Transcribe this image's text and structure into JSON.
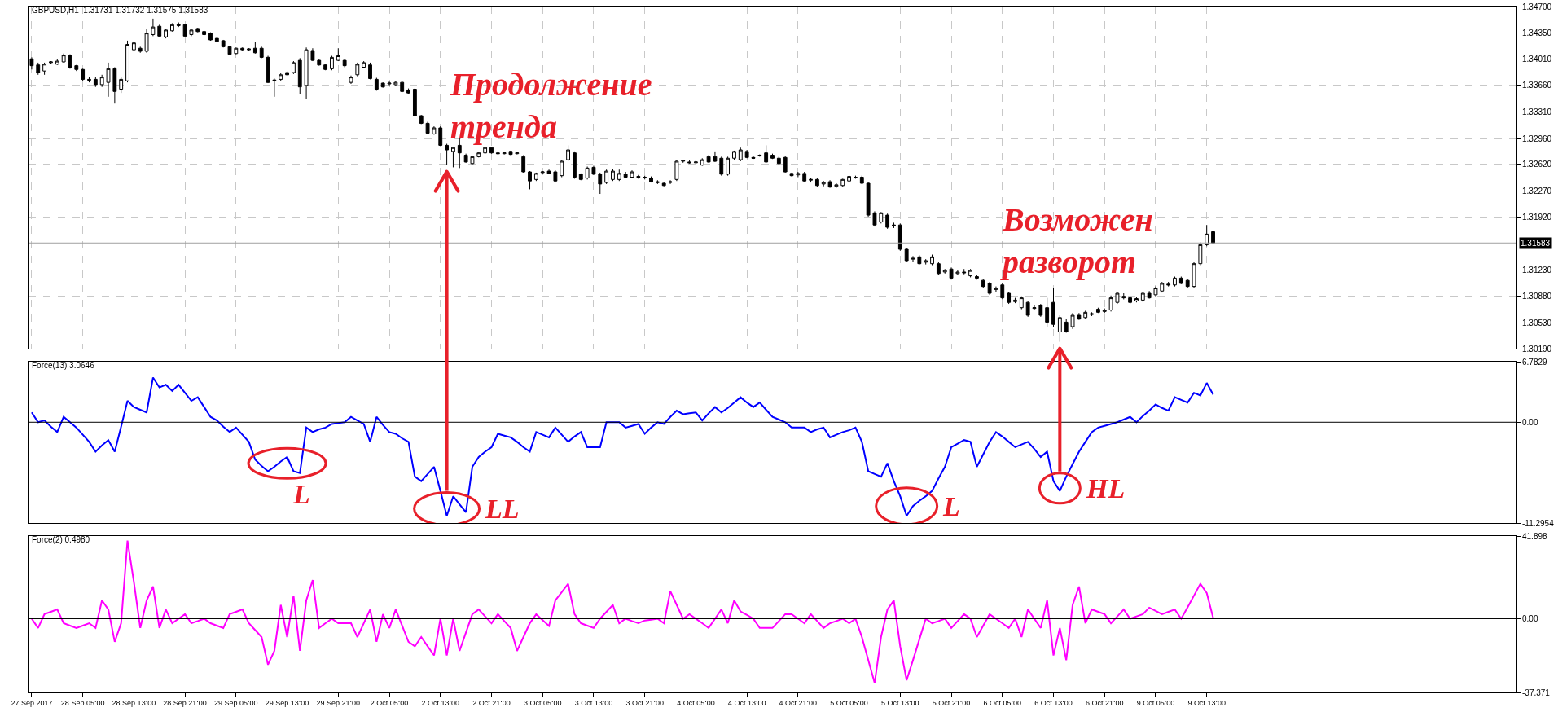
{
  "chart_data": [
    {
      "type": "candlestick",
      "title": "GBPUSD,H1  1.31731 1.31732 1.31575 1.31583",
      "grid": true,
      "tick_labels": "y",
      "categories": [
        null,
        null,
        null,
        null,
        null,
        null,
        null,
        null,
        null,
        null,
        null,
        null,
        null,
        null,
        null,
        null,
        null,
        null,
        null,
        null,
        null,
        null,
        null,
        null,
        null,
        null,
        null,
        null,
        null,
        null,
        null,
        null,
        null,
        null,
        null,
        null,
        null,
        null,
        null,
        null,
        null,
        null,
        null,
        null,
        null,
        null,
        null,
        null,
        null,
        null,
        null,
        null,
        null,
        null,
        null,
        null,
        null,
        null,
        null,
        null,
        null,
        null,
        null,
        null,
        null,
        null,
        null,
        null,
        null,
        null,
        null,
        null,
        null,
        null,
        null,
        null,
        null,
        null,
        null,
        null,
        null,
        null,
        null,
        null,
        null,
        null,
        null,
        null,
        null,
        null,
        null,
        null,
        null,
        null,
        null,
        null,
        null,
        null,
        null,
        null,
        null,
        null,
        null,
        null,
        null,
        null,
        null,
        null,
        null,
        null,
        null,
        null,
        null,
        null,
        null,
        null,
        null,
        null,
        null,
        null,
        null,
        null,
        null,
        null,
        null,
        null,
        null,
        null,
        null,
        null,
        null,
        null,
        null,
        null,
        null,
        null,
        null,
        null,
        null,
        null,
        null,
        null,
        null,
        null,
        null,
        null,
        null,
        null,
        null,
        null,
        null,
        null,
        null,
        null,
        null,
        null,
        null,
        null,
        null,
        null,
        null,
        null,
        null,
        null,
        null,
        null,
        null,
        null,
        null,
        null,
        null,
        null,
        null,
        null,
        null,
        null,
        null,
        null,
        null,
        null,
        null,
        null,
        null,
        null,
        null,
        null,
        null,
        null,
        null,
        null,
        null,
        null,
        null,
        null,
        null,
        null,
        null,
        null,
        null,
        null,
        null,
        null,
        null,
        null,
        null,
        null,
        null,
        null,
        null,
        null,
        null,
        null,
        null,
        null,
        null,
        null,
        null,
        null,
        null,
        null,
        null,
        null,
        null,
        null,
        null,
        null,
        null,
        null,
        null,
        null,
        null,
        null,
        null
      ],
      "ylim": [
        1.3019,
        1.347
      ],
      "yticks": [
        {
          "value": 1.347,
          "label": "1.34700"
        },
        {
          "value": 1.3435,
          "label": "1.34350"
        },
        {
          "value": 1.3401,
          "label": "1.34010"
        },
        {
          "value": 1.3366,
          "label": "1.33660"
        },
        {
          "value": 1.3331,
          "label": "1.33310"
        },
        {
          "value": 1.3296,
          "label": "1.32960"
        },
        {
          "value": 1.3262,
          "label": "1.32620"
        },
        {
          "value": 1.3227,
          "label": "1.32270"
        },
        {
          "value": 1.3192,
          "label": "1.31920"
        },
        {
          "value": 1.3123,
          "label": "1.31230"
        },
        {
          "value": 1.3088,
          "label": "1.30880"
        },
        {
          "value": 1.3053,
          "label": "1.30530"
        },
        {
          "value": 1.3019,
          "label": "1.30190"
        }
      ],
      "ref_lines": [
        {
          "axis": "y",
          "value": 1.31583,
          "label": "1.31583",
          "color": "#a0a0a0"
        }
      ],
      "annotations": [
        "Продолжение\nтренда",
        "Возможен\nразворот"
      ],
      "ohlc": [
        [
          1.3401,
          1.3403,
          1.3387,
          1.3392
        ],
        [
          1.3393,
          1.3396,
          1.338,
          1.3383
        ],
        [
          1.3385,
          1.3396,
          1.338,
          1.3394
        ],
        [
          1.3396,
          1.3398,
          1.3394,
          1.3397
        ],
        [
          1.3394,
          1.3401,
          1.3393,
          1.3398
        ],
        [
          1.3397,
          1.3408,
          1.3396,
          1.3406
        ],
        [
          1.3405,
          1.3407,
          1.3388,
          1.339
        ],
        [
          1.3392,
          1.3393,
          1.3385,
          1.3387
        ],
        [
          1.3387,
          1.3388,
          1.3372,
          1.3374
        ],
        [
          1.3374,
          1.3377,
          1.337,
          1.3373
        ],
        [
          1.3374,
          1.3377,
          1.3364,
          1.3367
        ],
        [
          1.3367,
          1.338,
          1.3364,
          1.3377
        ],
        [
          1.337,
          1.3396,
          1.3351,
          1.3388
        ],
        [
          1.3388,
          1.339,
          1.3342,
          1.3358
        ],
        [
          1.3361,
          1.3377,
          1.3356,
          1.3374
        ],
        [
          1.3372,
          1.3425,
          1.337,
          1.342
        ],
        [
          1.3413,
          1.3424,
          1.3411,
          1.3422
        ],
        [
          1.3415,
          1.3417,
          1.3409,
          1.3411
        ],
        [
          1.3411,
          1.3441,
          1.3409,
          1.3435
        ],
        [
          1.3433,
          1.3454,
          1.3431,
          1.3443
        ],
        [
          1.3444,
          1.3446,
          1.343,
          1.3431
        ],
        [
          1.343,
          1.3441,
          1.3428,
          1.3439
        ],
        [
          1.3438,
          1.3448,
          1.3437,
          1.3446
        ],
        [
          1.3446,
          1.3449,
          1.3443,
          1.3445
        ],
        [
          1.3446,
          1.3447,
          1.343,
          1.3431
        ],
        [
          1.3433,
          1.3441,
          1.3431,
          1.3439
        ],
        [
          1.3441,
          1.3442,
          1.3436,
          1.3437
        ],
        [
          1.3437,
          1.3438,
          1.3432,
          1.3433
        ],
        [
          1.3435,
          1.3436,
          1.3425,
          1.3426
        ],
        [
          1.3428,
          1.3429,
          1.3423,
          1.3424
        ],
        [
          1.3425,
          1.3426,
          1.3416,
          1.3417
        ],
        [
          1.3417,
          1.3418,
          1.3406,
          1.3407
        ],
        [
          1.3408,
          1.3416,
          1.3407,
          1.3415
        ],
        [
          1.3415,
          1.3416,
          1.3412,
          1.3413
        ],
        [
          1.3413,
          1.3415,
          1.3411,
          1.3414
        ],
        [
          1.3415,
          1.3423,
          1.3408,
          1.3409
        ],
        [
          1.3415,
          1.3417,
          1.3402,
          1.3403
        ],
        [
          1.3403,
          1.3405,
          1.3369,
          1.337
        ],
        [
          1.3372,
          1.3375,
          1.3351,
          1.3373
        ],
        [
          1.3374,
          1.3382,
          1.3372,
          1.338
        ],
        [
          1.3383,
          1.3385,
          1.3379,
          1.338
        ],
        [
          1.3383,
          1.3398,
          1.3381,
          1.3396
        ],
        [
          1.3399,
          1.3402,
          1.3354,
          1.3364
        ],
        [
          1.3366,
          1.3416,
          1.3348,
          1.3413
        ],
        [
          1.3412,
          1.3415,
          1.3398,
          1.3399
        ],
        [
          1.3399,
          1.3401,
          1.3392,
          1.3393
        ],
        [
          1.3393,
          1.3394,
          1.3386,
          1.3387
        ],
        [
          1.3388,
          1.3405,
          1.3386,
          1.3403
        ],
        [
          1.3399,
          1.3415,
          1.3398,
          1.3405
        ],
        [
          1.3399,
          1.3401,
          1.339,
          1.3392
        ],
        [
          1.337,
          1.3379,
          1.3368,
          1.3377
        ],
        [
          1.338,
          1.3396,
          1.3378,
          1.3394
        ],
        [
          1.339,
          1.3398,
          1.3389,
          1.3396
        ],
        [
          1.3393,
          1.3396,
          1.3374,
          1.3375
        ],
        [
          1.3374,
          1.3376,
          1.3359,
          1.3361
        ],
        [
          1.3369,
          1.337,
          1.3363,
          1.3364
        ],
        [
          1.3368,
          1.3371,
          1.3366,
          1.3369
        ],
        [
          1.3367,
          1.3372,
          1.3366,
          1.337
        ],
        [
          1.337,
          1.3372,
          1.3357,
          1.3358
        ],
        [
          1.336,
          1.3362,
          1.3355,
          1.3356
        ],
        [
          1.3361,
          1.3362,
          1.3325,
          1.3326
        ],
        [
          1.3326,
          1.3327,
          1.3315,
          1.3316
        ],
        [
          1.3316,
          1.3318,
          1.3302,
          1.3303
        ],
        [
          1.3302,
          1.3312,
          1.3301,
          1.331
        ],
        [
          1.331,
          1.3312,
          1.3286,
          1.3287
        ],
        [
          1.3287,
          1.3289,
          1.3261,
          1.3281
        ],
        [
          1.3279,
          1.3285,
          1.3258,
          1.3284
        ],
        [
          1.3287,
          1.3297,
          1.3257,
          1.3277
        ],
        [
          1.3274,
          1.3276,
          1.3264,
          1.3265
        ],
        [
          1.3263,
          1.3273,
          1.3262,
          1.3272
        ],
        [
          1.3272,
          1.3278,
          1.3271,
          1.3277
        ],
        [
          1.3277,
          1.3285,
          1.3276,
          1.3284
        ],
        [
          1.3284,
          1.3285,
          1.3276,
          1.3277
        ],
        [
          1.3277,
          1.3279,
          1.3275,
          1.3276
        ],
        [
          1.3276,
          1.3278,
          1.3275,
          1.3277
        ],
        [
          1.3279,
          1.328,
          1.3274,
          1.3275
        ],
        [
          1.3276,
          1.3278,
          1.3275,
          1.3277
        ],
        [
          1.3272,
          1.3274,
          1.3251,
          1.3252
        ],
        [
          1.3252,
          1.3253,
          1.3229,
          1.324
        ],
        [
          1.3242,
          1.3251,
          1.324,
          1.325
        ],
        [
          1.3251,
          1.3253,
          1.325,
          1.3252
        ],
        [
          1.3253,
          1.3255,
          1.3249,
          1.325
        ],
        [
          1.3252,
          1.3254,
          1.3238,
          1.324
        ],
        [
          1.3247,
          1.3267,
          1.3245,
          1.3266
        ],
        [
          1.3268,
          1.3287,
          1.3266,
          1.3281
        ],
        [
          1.3277,
          1.3279,
          1.3243,
          1.3245
        ],
        [
          1.3249,
          1.325,
          1.3241,
          1.3242
        ],
        [
          1.3244,
          1.3259,
          1.3242,
          1.3257
        ],
        [
          1.3258,
          1.326,
          1.3248,
          1.3249
        ],
        [
          1.3249,
          1.3251,
          1.3223,
          1.3236
        ],
        [
          1.3238,
          1.3255,
          1.3236,
          1.3253
        ],
        [
          1.3242,
          1.3256,
          1.324,
          1.3253
        ],
        [
          1.3242,
          1.3255,
          1.324,
          1.325
        ],
        [
          1.3249,
          1.3252,
          1.3244,
          1.3245
        ],
        [
          1.3245,
          1.3254,
          1.3244,
          1.3252
        ],
        [
          1.3246,
          1.3248,
          1.3243,
          1.3245
        ],
        [
          1.3245,
          1.3247,
          1.3242,
          1.3244
        ],
        [
          1.3244,
          1.3246,
          1.3238,
          1.3239
        ],
        [
          1.3239,
          1.3241,
          1.3236,
          1.3238
        ],
        [
          1.3237,
          1.3238,
          1.3233,
          1.3234
        ],
        [
          1.3238,
          1.3241,
          1.3236,
          1.3239
        ],
        [
          1.3242,
          1.3268,
          1.324,
          1.3266
        ],
        [
          1.3266,
          1.3268,
          1.3264,
          1.3267
        ],
        [
          1.3265,
          1.3267,
          1.3263,
          1.3264
        ],
        [
          1.3264,
          1.3267,
          1.3263,
          1.3265
        ],
        [
          1.3261,
          1.327,
          1.326,
          1.3268
        ],
        [
          1.3272,
          1.3274,
          1.3264,
          1.3265
        ],
        [
          1.3272,
          1.3279,
          1.3265,
          1.3266
        ],
        [
          1.327,
          1.3272,
          1.3247,
          1.3249
        ],
        [
          1.3249,
          1.3272,
          1.3247,
          1.327
        ],
        [
          1.327,
          1.328,
          1.3268,
          1.3279
        ],
        [
          1.3268,
          1.3284,
          1.3266,
          1.3281
        ],
        [
          1.3279,
          1.3281,
          1.327,
          1.3271
        ],
        [
          1.3271,
          1.3273,
          1.3269,
          1.327
        ],
        [
          1.3273,
          1.3275,
          1.3272,
          1.3274
        ],
        [
          1.3277,
          1.3287,
          1.3264,
          1.3265
        ],
        [
          1.3274,
          1.3276,
          1.3269,
          1.327
        ],
        [
          1.327,
          1.3272,
          1.3262,
          1.3263
        ],
        [
          1.3271,
          1.3273,
          1.3251,
          1.3252
        ],
        [
          1.325,
          1.3251,
          1.3246,
          1.3247
        ],
        [
          1.3248,
          1.3252,
          1.3245,
          1.325
        ],
        [
          1.325,
          1.3252,
          1.3239,
          1.324
        ],
        [
          1.3241,
          1.3244,
          1.3238,
          1.3242
        ],
        [
          1.3242,
          1.3244,
          1.3232,
          1.3234
        ],
        [
          1.3236,
          1.324,
          1.3233,
          1.3238
        ],
        [
          1.3239,
          1.3241,
          1.3231,
          1.3232
        ],
        [
          1.3233,
          1.3237,
          1.3231,
          1.3235
        ],
        [
          1.3234,
          1.3243,
          1.3232,
          1.3242
        ],
        [
          1.324,
          1.3247,
          1.3239,
          1.3246
        ],
        [
          1.3245,
          1.3247,
          1.3243,
          1.3244
        ],
        [
          1.3245,
          1.3247,
          1.3236,
          1.3237
        ],
        [
          1.3237,
          1.3239,
          1.3193,
          1.3195
        ],
        [
          1.3198,
          1.32,
          1.318,
          1.3182
        ],
        [
          1.3186,
          1.3199,
          1.3184,
          1.3198
        ],
        [
          1.3195,
          1.3197,
          1.3177,
          1.3179
        ],
        [
          1.3182,
          1.3185,
          1.3178,
          1.3181
        ],
        [
          1.3182,
          1.3184,
          1.3148,
          1.315
        ],
        [
          1.315,
          1.3152,
          1.3133,
          1.3135
        ],
        [
          1.3137,
          1.3141,
          1.3133,
          1.3138
        ],
        [
          1.314,
          1.3142,
          1.313,
          1.3131
        ],
        [
          1.3133,
          1.3137,
          1.313,
          1.3135
        ],
        [
          1.3131,
          1.3143,
          1.3129,
          1.314
        ],
        [
          1.3131,
          1.3133,
          1.3116,
          1.3118
        ],
        [
          1.312,
          1.3124,
          1.3118,
          1.3122
        ],
        [
          1.3124,
          1.3126,
          1.311,
          1.3112
        ],
        [
          1.3118,
          1.3123,
          1.3116,
          1.312
        ],
        [
          1.312,
          1.3124,
          1.3117,
          1.3119
        ],
        [
          1.3115,
          1.3124,
          1.3113,
          1.3122
        ],
        [
          1.3114,
          1.3116,
          1.311,
          1.3112
        ],
        [
          1.3109,
          1.3111,
          1.3099,
          1.3101
        ],
        [
          1.3105,
          1.3107,
          1.309,
          1.3092
        ],
        [
          1.3097,
          1.3101,
          1.3094,
          1.3099
        ],
        [
          1.3103,
          1.3105,
          1.3084,
          1.3086
        ],
        [
          1.3092,
          1.3094,
          1.3078,
          1.308
        ],
        [
          1.3081,
          1.3086,
          1.3079,
          1.3083
        ],
        [
          1.3073,
          1.3088,
          1.3071,
          1.3086
        ],
        [
          1.308,
          1.3082,
          1.3061,
          1.3063
        ],
        [
          1.3072,
          1.3076,
          1.307,
          1.3073
        ],
        [
          1.3076,
          1.3078,
          1.3061,
          1.3063
        ],
        [
          1.3073,
          1.3086,
          1.3048,
          1.3054
        ],
        [
          1.308,
          1.3099,
          1.3048,
          1.3051
        ],
        [
          1.3041,
          1.3063,
          1.3028,
          1.306
        ],
        [
          1.3054,
          1.3058,
          1.304,
          1.3041
        ],
        [
          1.3048,
          1.3066,
          1.3045,
          1.3063
        ],
        [
          1.3063,
          1.3066,
          1.3057,
          1.3058
        ],
        [
          1.306,
          1.3069,
          1.3058,
          1.3067
        ],
        [
          1.3064,
          1.3067,
          1.3062,
          1.3065
        ],
        [
          1.3071,
          1.3073,
          1.3066,
          1.3067
        ],
        [
          1.3068,
          1.3072,
          1.3066,
          1.307
        ],
        [
          1.307,
          1.3089,
          1.3068,
          1.3086
        ],
        [
          1.308,
          1.3094,
          1.3078,
          1.3092
        ],
        [
          1.3088,
          1.3092,
          1.3084,
          1.3086
        ],
        [
          1.3086,
          1.3088,
          1.3078,
          1.308
        ],
        [
          1.3082,
          1.3087,
          1.308,
          1.3085
        ],
        [
          1.3083,
          1.3094,
          1.3081,
          1.3092
        ],
        [
          1.3092,
          1.3095,
          1.3085,
          1.3086
        ],
        [
          1.309,
          1.3101,
          1.3088,
          1.3099
        ],
        [
          1.3095,
          1.3107,
          1.3093,
          1.3105
        ],
        [
          1.3104,
          1.3107,
          1.3101,
          1.3103
        ],
        [
          1.3103,
          1.3114,
          1.3101,
          1.3112
        ],
        [
          1.3112,
          1.3114,
          1.3104,
          1.3105
        ],
        [
          1.3109,
          1.3111,
          1.3099,
          1.3101
        ],
        [
          1.3101,
          1.3133,
          1.3099,
          1.3131
        ],
        [
          1.3131,
          1.3159,
          1.3129,
          1.3156
        ],
        [
          1.3156,
          1.3182,
          1.3154,
          1.317
        ],
        [
          1.31731,
          1.31732,
          1.31575,
          1.31583
        ],
        null,
        null,
        null,
        null,
        null,
        null,
        null,
        null,
        null,
        null,
        null,
        null,
        null,
        null,
        null,
        null,
        null,
        null,
        null,
        null,
        null,
        null,
        null,
        null,
        null,
        null,
        null,
        null,
        null,
        null,
        null,
        null,
        null,
        null,
        null,
        null,
        null,
        null,
        null,
        null,
        null,
        null,
        null,
        null,
        null,
        null,
        null
      ]
    },
    {
      "type": "line",
      "title": "Force(13) 3.0646",
      "tick_labels": "y",
      "categories": [
        null,
        null,
        null,
        null,
        null,
        null,
        null,
        null,
        null,
        null,
        null,
        null,
        null,
        null,
        null,
        null,
        null,
        null,
        null,
        null,
        null,
        null,
        null,
        null,
        null,
        null,
        null,
        null,
        null,
        null,
        null,
        null,
        null,
        null,
        null,
        null,
        null,
        null,
        null,
        null,
        null,
        null,
        null,
        null,
        null,
        null,
        null,
        null,
        null,
        null,
        null,
        null,
        null,
        null,
        null,
        null,
        null,
        null,
        null,
        null,
        null,
        null,
        null,
        null,
        null,
        null,
        null,
        null,
        null,
        null,
        null,
        null,
        null,
        null,
        null,
        null,
        null,
        null,
        null,
        null,
        null,
        null,
        null,
        null,
        null,
        null,
        null,
        null,
        null,
        null,
        null,
        null,
        null,
        null,
        null,
        null,
        null,
        null,
        null,
        null,
        null,
        null,
        null,
        null,
        null,
        null,
        null,
        null,
        null,
        null,
        null,
        null,
        null,
        null,
        null,
        null,
        null,
        null,
        null,
        null,
        null,
        null,
        null,
        null,
        null,
        null,
        null,
        null,
        null,
        null,
        null,
        null,
        null,
        null,
        null,
        null,
        null,
        null,
        null,
        null,
        null,
        null,
        null,
        null,
        null,
        null,
        null,
        null,
        null,
        null,
        null,
        null,
        null,
        null,
        null,
        null,
        null,
        null,
        null,
        null,
        null,
        null,
        null,
        null,
        null,
        null,
        null,
        null,
        null,
        null,
        null,
        null,
        null,
        null,
        null,
        null,
        null,
        null,
        null,
        null,
        null,
        null,
        null,
        null,
        null,
        null,
        null,
        null,
        null,
        null,
        null,
        null,
        null,
        null,
        null,
        null,
        null,
        null,
        null,
        null,
        null,
        null,
        null,
        null,
        null,
        null,
        null,
        null,
        null,
        null,
        null,
        null,
        null,
        null,
        null,
        null,
        null,
        null,
        null,
        null,
        null,
        null,
        null,
        null,
        null,
        null,
        null,
        null,
        null,
        null,
        null,
        null,
        null
      ],
      "ylim": [
        -11.2954,
        6.7829
      ],
      "yticks": [
        6.7829,
        {
          "value": 0,
          "label": "0.00"
        },
        -11.2954
      ],
      "ref_lines": [
        {
          "axis": "y",
          "value": 0,
          "color": "#000000"
        }
      ],
      "annotations": [
        "L",
        "LL",
        "L",
        "HL"
      ],
      "series": [
        {
          "color": "#0000ff",
          "values": [
            1.1,
            0,
            0.2,
            -0.5,
            -1.1,
            0.6,
            0,
            -0.6,
            -1.4,
            -2.2,
            -3.3,
            -2.6,
            -2.0,
            -3.3,
            -0.5,
            2.4,
            1.7,
            1.4,
            1.1,
            5.0,
            3.9,
            4.2,
            3.5,
            4.2,
            3.3,
            2.4,
            2.8,
            1.7,
            0.6,
            0.2,
            -0.5,
            -1.1,
            -0.6,
            -1.4,
            -2.2,
            -4.2,
            -4.9,
            -5.5,
            -5.0,
            -4.4,
            -3.9,
            -5.5,
            -5.7,
            -0.6,
            -1.1,
            -0.8,
            -0.6,
            -0.2,
            -0.1,
            0,
            0.6,
            0.2,
            -0.2,
            -2.2,
            0.6,
            -0.3,
            -1.1,
            -1.3,
            -1.8,
            -2.2,
            -6.1,
            -6.6,
            -5.8,
            -5.0,
            -7.7,
            -10.5,
            -8.3,
            -9.2,
            -10.1,
            -5.0,
            -3.9,
            -3.3,
            -2.8,
            -1.3,
            -1.5,
            -1.7,
            -2.2,
            -2.8,
            -3.3,
            -1.1,
            -1.4,
            -1.7,
            -0.6,
            -1.4,
            -2.2,
            -1.6,
            -1.1,
            -2.8,
            -2.8,
            -2.8,
            0,
            0,
            0,
            -0.6,
            -0.4,
            -0.2,
            -1.3,
            -0.6,
            0,
            -0.2,
            0.6,
            1.3,
            0.9,
            1.0,
            1.1,
            0.2,
            1.0,
            1.7,
            1.1,
            1.6,
            2.2,
            2.8,
            2.2,
            1.7,
            2.2,
            1.4,
            0.6,
            0.3,
            0,
            -0.6,
            -0.6,
            -0.6,
            -1.1,
            -0.8,
            -0.6,
            -1.7,
            -1.4,
            -1.1,
            -0.9,
            -0.6,
            -2.2,
            -5.5,
            -5.8,
            -6.1,
            -4.6,
            -6.6,
            -8.3,
            -10.5,
            -9.4,
            -8.8,
            -8.3,
            -7.7,
            -6.3,
            -5.0,
            -2.8,
            -2.4,
            -2.0,
            -2.2,
            -5.0,
            -3.6,
            -2.2,
            -1.1,
            -1.6,
            -2.2,
            -2.8,
            -2.5,
            -2.2,
            -3.0,
            -3.9,
            -3.3,
            -6.6,
            -7.7,
            -6.1,
            -4.7,
            -3.3,
            -2.2,
            -1.1,
            -0.6,
            -0.4,
            -0.2,
            0,
            0.3,
            0.6,
            0,
            0.7,
            1.3,
            2.0,
            1.6,
            1.3,
            2.8,
            2.5,
            2.2,
            3.3,
            3.0,
            4.4,
            3.1,
            null,
            null,
            null,
            null,
            null,
            null,
            null,
            null,
            null,
            null,
            null,
            null,
            null,
            null,
            null,
            null,
            null,
            null,
            null,
            null,
            null,
            null,
            null,
            null,
            null,
            null,
            null,
            null,
            null,
            null,
            null,
            null,
            null,
            null,
            null,
            null,
            null,
            null,
            null,
            null,
            null,
            null,
            null,
            null,
            null,
            null,
            null
          ]
        }
      ]
    },
    {
      "type": "line",
      "title": "Force(2) 0.4980",
      "categories": [
        "27 Sep 2017",
        null,
        null,
        null,
        null,
        null,
        null,
        null,
        "28 Sep 05:00",
        null,
        null,
        null,
        null,
        null,
        null,
        null,
        "28 Sep 13:00",
        null,
        null,
        null,
        null,
        null,
        null,
        null,
        "28 Sep 21:00",
        null,
        null,
        null,
        null,
        null,
        null,
        null,
        "29 Sep 05:00",
        null,
        null,
        null,
        null,
        null,
        null,
        null,
        "29 Sep 13:00",
        null,
        null,
        null,
        null,
        null,
        null,
        null,
        "29 Sep 21:00",
        null,
        null,
        null,
        null,
        null,
        null,
        null,
        "2 Oct 05:00",
        null,
        null,
        null,
        null,
        null,
        null,
        null,
        "2 Oct 13:00",
        null,
        null,
        null,
        null,
        null,
        null,
        null,
        "2 Oct 21:00",
        null,
        null,
        null,
        null,
        null,
        null,
        null,
        "3 Oct 05:00",
        null,
        null,
        null,
        null,
        null,
        null,
        null,
        "3 Oct 13:00",
        null,
        null,
        null,
        null,
        null,
        null,
        null,
        "3 Oct 21:00",
        null,
        null,
        null,
        null,
        null,
        null,
        null,
        "4 Oct 05:00",
        null,
        null,
        null,
        null,
        null,
        null,
        null,
        "4 Oct 13:00",
        null,
        null,
        null,
        null,
        null,
        null,
        null,
        "4 Oct 21:00",
        null,
        null,
        null,
        null,
        null,
        null,
        null,
        "5 Oct 05:00",
        null,
        null,
        null,
        null,
        null,
        null,
        null,
        "5 Oct 13:00",
        null,
        null,
        null,
        null,
        null,
        null,
        null,
        "5 Oct 21:00",
        null,
        null,
        null,
        null,
        null,
        null,
        null,
        "6 Oct 05:00",
        null,
        null,
        null,
        null,
        null,
        null,
        null,
        "6 Oct 13:00",
        null,
        null,
        null,
        null,
        null,
        null,
        null,
        "6 Oct 21:00",
        null,
        null,
        null,
        null,
        null,
        null,
        null,
        "9 Oct 05:00",
        null,
        null,
        null,
        null,
        null,
        null,
        null,
        "9 Oct 13:00",
        null,
        null,
        null,
        null,
        null,
        null,
        null,
        null,
        null,
        null,
        null,
        null,
        null,
        null,
        null,
        null,
        null,
        null,
        null,
        null,
        null,
        null,
        null,
        null,
        null,
        null,
        null,
        null,
        null,
        null,
        null,
        null,
        null,
        null,
        null,
        null,
        null,
        null,
        null,
        null,
        null,
        null,
        null,
        null,
        null,
        null,
        null,
        null
      ],
      "ylim": [
        -37.371,
        41.898
      ],
      "yticks": [
        41.898,
        {
          "value": 0,
          "label": "0.00"
        },
        -37.371
      ],
      "ref_lines": [
        {
          "axis": "y",
          "value": 0,
          "color": "#000000"
        }
      ],
      "series": [
        {
          "color": "#ff00ff",
          "values": [
            0,
            -4.7,
            2.3,
            3.5,
            4.7,
            -2.3,
            -3.5,
            -4.7,
            -3.5,
            -2.3,
            -4.7,
            9.3,
            4.7,
            -11.7,
            -2.3,
            39.6,
            18.6,
            -4.7,
            9.3,
            16.3,
            -4.7,
            4.7,
            -2.3,
            0,
            2.3,
            -2.3,
            -1.2,
            0,
            -2.3,
            -3.5,
            -4.7,
            2.3,
            3.5,
            4.7,
            -2.3,
            -5.8,
            -9.3,
            -23.3,
            -16.3,
            7.0,
            -9.3,
            11.7,
            -16.3,
            9.3,
            19.6,
            -4.7,
            -2.3,
            0,
            -2.3,
            -2.3,
            -2.3,
            -9.3,
            -2.3,
            4.7,
            -11.7,
            2.3,
            -4.7,
            4.7,
            -3.5,
            -11.7,
            -14.0,
            -9.3,
            -14.0,
            -18.6,
            0,
            -18.6,
            0,
            -16.3,
            -7.0,
            2.3,
            4.7,
            1.2,
            -2.3,
            2.3,
            -1.2,
            -4.7,
            -16.3,
            -9.3,
            -2.3,
            2.3,
            -0.7,
            -3.7,
            9.3,
            13.5,
            17.7,
            2.3,
            -2.3,
            -3.5,
            -4.7,
            0,
            3.5,
            7.0,
            -2.3,
            0,
            -1.2,
            -2.3,
            -0.9,
            -0.5,
            0,
            -2.3,
            14.0,
            7.0,
            0,
            2.3,
            0,
            -2.3,
            -4.7,
            0,
            4.7,
            -2.3,
            9.3,
            3.7,
            1.9,
            0,
            -4.7,
            -4.7,
            -4.7,
            -1.2,
            2.3,
            2.3,
            0,
            -2.3,
            2.3,
            -1.2,
            -4.7,
            -2.3,
            -1.2,
            0,
            -2.3,
            0,
            -9.3,
            -21.0,
            -32.6,
            -9.3,
            4.7,
            9.3,
            -14.0,
            -31.2,
            -21.0,
            -10.5,
            0,
            -2.3,
            -1.2,
            0,
            -4.7,
            -1.2,
            2.3,
            0,
            -9.3,
            -3.5,
            2.3,
            0,
            -2.3,
            -4.7,
            0,
            -9.3,
            4.7,
            0,
            -4.7,
            9.3,
            -18.6,
            -4.7,
            -21.0,
            7.0,
            16.3,
            -2.3,
            4.7,
            3.5,
            2.3,
            -2.3,
            1.2,
            4.7,
            0,
            1.2,
            2.3,
            5.6,
            4.0,
            2.3,
            3.5,
            4.7,
            0,
            5.8,
            11.7,
            17.7,
            13.0,
            0.5,
            null,
            null,
            null,
            null,
            null,
            null,
            null,
            null,
            null,
            null,
            null,
            null,
            null,
            null,
            null,
            null,
            null,
            null,
            null,
            null,
            null,
            null,
            null,
            null,
            null,
            null,
            null,
            null,
            null,
            null,
            null,
            null,
            null,
            null,
            null,
            null,
            null,
            null,
            null,
            null,
            null,
            null,
            null,
            null,
            null,
            null,
            null
          ]
        }
      ]
    }
  ]
}
